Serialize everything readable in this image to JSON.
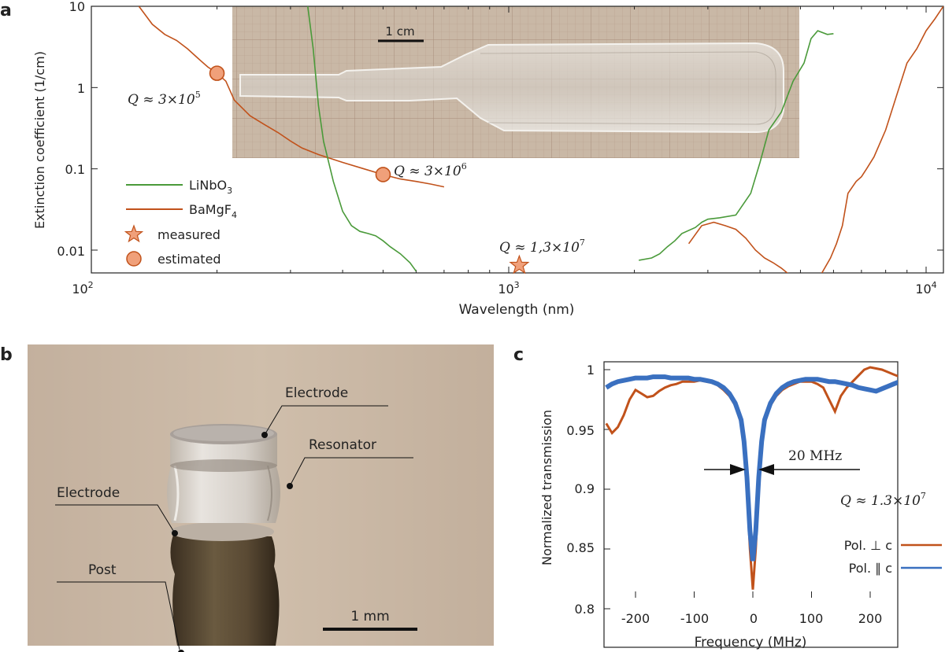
{
  "panel_labels": {
    "a": "a",
    "b": "b",
    "c": "c"
  },
  "panel_a": {
    "ylabel": "Extinction coefficient (1/cm)",
    "xlabel": "Wavelength (nm)",
    "y_ticks": [
      "10",
      "1",
      "0.1",
      "0.01"
    ],
    "x_ticks": [
      {
        "base": "10",
        "exp": "2"
      },
      {
        "base": "10",
        "exp": "3"
      },
      {
        "base": "10",
        "exp": "4"
      }
    ],
    "scale_bar": "1 cm",
    "legend": {
      "linbo3": {
        "main": "LiNbO",
        "sub": "3"
      },
      "bamgf4": {
        "main": "BaMgF",
        "sub": "4"
      },
      "measured": "measured",
      "estimated": "estimated"
    },
    "annotations": {
      "q1": {
        "prefix": "Q ≈ 3×10",
        "exp": "5"
      },
      "q2": {
        "prefix": "Q ≈ 3×10",
        "exp": "6"
      },
      "q3": {
        "prefix": "Q ≈ 1,3×10",
        "exp": "7"
      }
    },
    "colors": {
      "linbo3": "#4a9a3a",
      "bamgf4": "#c1521b",
      "marker": "#f0a07a"
    }
  },
  "panel_b": {
    "labels": {
      "electrode_top": "Electrode",
      "resonator": "Resonator",
      "electrode_bottom": "Electrode",
      "post": "Post"
    },
    "scale_bar": "1 mm"
  },
  "chart_data": [
    {
      "type": "line",
      "xlabel": "Wavelength (nm)",
      "ylabel": "Extinction coefficient (1/cm)",
      "xscale": "log",
      "yscale": "log",
      "xlim": [
        100,
        11000
      ],
      "ylim": [
        0.005,
        10
      ],
      "series": [
        {
          "name": "LiNbO3",
          "color": "#4a9a3a",
          "x": [
            330,
            340,
            350,
            360,
            380,
            400,
            420,
            440,
            460,
            480,
            500,
            520,
            550,
            580,
            600,
            2050,
            2200,
            2300,
            2400,
            2500,
            2600,
            2800,
            2900,
            3000,
            3200,
            3500,
            3800,
            4000,
            4200,
            4500,
            4800,
            5100,
            5300,
            5500,
            5800,
            6000
          ],
          "y": [
            10,
            3,
            0.6,
            0.22,
            0.07,
            0.03,
            0.02,
            0.017,
            0.016,
            0.015,
            0.013,
            0.011,
            0.009,
            0.007,
            0.0055,
            0.0075,
            0.008,
            0.009,
            0.011,
            0.013,
            0.016,
            0.019,
            0.022,
            0.024,
            0.025,
            0.027,
            0.05,
            0.12,
            0.3,
            0.5,
            1.2,
            2.0,
            4.0,
            5.0,
            4.5,
            4.6
          ]
        },
        {
          "name": "BaMgF4",
          "color": "#c1521b",
          "x": [
            130,
            140,
            150,
            160,
            170,
            180,
            190,
            200,
            210,
            220,
            240,
            260,
            280,
            300,
            320,
            350,
            400,
            450,
            500,
            550,
            600,
            650,
            700,
            2700,
            2900,
            3100,
            3300,
            3500,
            3700,
            3900,
            4100,
            4300,
            4500,
            4700,
            5000,
            5300,
            5600,
            5900,
            6100,
            6300,
            6500,
            6800,
            7000,
            7200,
            7500,
            8000,
            8500,
            9000,
            9500,
            10000,
            10500,
            11000
          ],
          "y": [
            10,
            6,
            4.5,
            3.8,
            3.0,
            2.3,
            1.8,
            1.5,
            1.2,
            0.7,
            0.45,
            0.35,
            0.28,
            0.22,
            0.18,
            0.15,
            0.12,
            0.1,
            0.085,
            0.075,
            0.07,
            0.065,
            0.06,
            0.012,
            0.02,
            0.022,
            0.02,
            0.018,
            0.014,
            0.01,
            0.008,
            0.007,
            0.006,
            0.005,
            0.005,
            0.005,
            0.005,
            0.008,
            0.012,
            0.02,
            0.05,
            0.07,
            0.08,
            0.1,
            0.14,
            0.3,
            0.8,
            2.0,
            3.0,
            5.0,
            7.0,
            10
          ]
        }
      ],
      "markers": [
        {
          "kind": "estimated",
          "x": 200,
          "y": 1.5,
          "label": "Q ≈ 3×10^5"
        },
        {
          "kind": "estimated",
          "x": 500,
          "y": 0.085,
          "label": "Q ≈ 3×10^6"
        },
        {
          "kind": "measured",
          "x": 1060,
          "y": 0.0065,
          "label": "Q ≈ 1,3×10^7"
        }
      ]
    },
    {
      "type": "line",
      "xlabel": "Frequency (MHz)",
      "ylabel": "Normalized transmission",
      "xlim": [
        -250,
        250
      ],
      "ylim": [
        0.8,
        1.005
      ],
      "x_ticks": [
        "-200",
        "-100",
        "0",
        "100",
        "200"
      ],
      "y_ticks": [
        "0.8",
        "0.85",
        "0.9",
        "0.95",
        "1"
      ],
      "linewidth_label": "20 MHz",
      "q_label": {
        "prefix": "Q ≈ 1.3×10",
        "exp": "7"
      },
      "series": [
        {
          "name": "Pol. ⊥ c",
          "color": "#c1521b",
          "x": [
            -250,
            -240,
            -230,
            -220,
            -210,
            -200,
            -190,
            -180,
            -170,
            -160,
            -150,
            -140,
            -130,
            -120,
            -110,
            -100,
            -90,
            -80,
            -70,
            -60,
            -50,
            -40,
            -30,
            -20,
            -15,
            -10,
            -5,
            0,
            5,
            10,
            15,
            20,
            30,
            40,
            50,
            60,
            70,
            80,
            90,
            100,
            110,
            120,
            130,
            140,
            150,
            160,
            170,
            180,
            190,
            200,
            210,
            220,
            230,
            240,
            250
          ],
          "y": [
            0.955,
            0.947,
            0.952,
            0.962,
            0.975,
            0.983,
            0.98,
            0.977,
            0.978,
            0.982,
            0.985,
            0.987,
            0.988,
            0.99,
            0.99,
            0.99,
            0.991,
            0.99,
            0.989,
            0.987,
            0.983,
            0.978,
            0.97,
            0.955,
            0.935,
            0.9,
            0.85,
            0.816,
            0.85,
            0.9,
            0.935,
            0.955,
            0.97,
            0.978,
            0.983,
            0.986,
            0.988,
            0.99,
            0.99,
            0.99,
            0.988,
            0.985,
            0.975,
            0.965,
            0.978,
            0.985,
            0.99,
            0.995,
            1.0,
            1.002,
            1.001,
            1.0,
            0.998,
            0.996,
            0.994
          ]
        },
        {
          "name": "Pol. ∥ c",
          "color": "#3a70c0",
          "x": [
            -250,
            -240,
            -230,
            -220,
            -210,
            -200,
            -190,
            -180,
            -170,
            -160,
            -150,
            -140,
            -130,
            -120,
            -110,
            -100,
            -90,
            -80,
            -70,
            -60,
            -50,
            -40,
            -30,
            -20,
            -15,
            -10,
            -5,
            0,
            5,
            10,
            15,
            20,
            30,
            40,
            50,
            60,
            70,
            80,
            90,
            100,
            110,
            120,
            130,
            140,
            150,
            160,
            170,
            180,
            190,
            200,
            210,
            220,
            230,
            240,
            250
          ],
          "y": [
            0.985,
            0.988,
            0.99,
            0.991,
            0.992,
            0.993,
            0.993,
            0.993,
            0.994,
            0.994,
            0.994,
            0.993,
            0.993,
            0.993,
            0.993,
            0.992,
            0.992,
            0.991,
            0.99,
            0.988,
            0.985,
            0.98,
            0.972,
            0.958,
            0.94,
            0.91,
            0.865,
            0.84,
            0.865,
            0.91,
            0.94,
            0.958,
            0.972,
            0.98,
            0.985,
            0.988,
            0.99,
            0.991,
            0.992,
            0.992,
            0.992,
            0.991,
            0.99,
            0.99,
            0.989,
            0.988,
            0.987,
            0.985,
            0.984,
            0.983,
            0.982,
            0.984,
            0.986,
            0.988,
            0.99
          ]
        }
      ]
    }
  ]
}
